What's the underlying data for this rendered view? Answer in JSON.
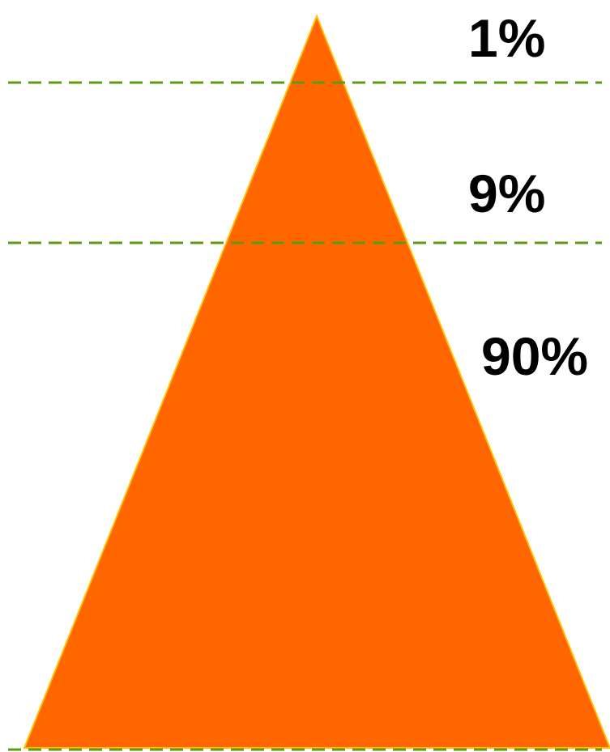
{
  "pyramid": {
    "fill_color": "#FF6600",
    "outline_color": "#FFC000",
    "divider_color": "#5E9A12",
    "tiers": [
      {
        "label": "1%"
      },
      {
        "label": "9%"
      },
      {
        "label": "90%"
      }
    ]
  }
}
